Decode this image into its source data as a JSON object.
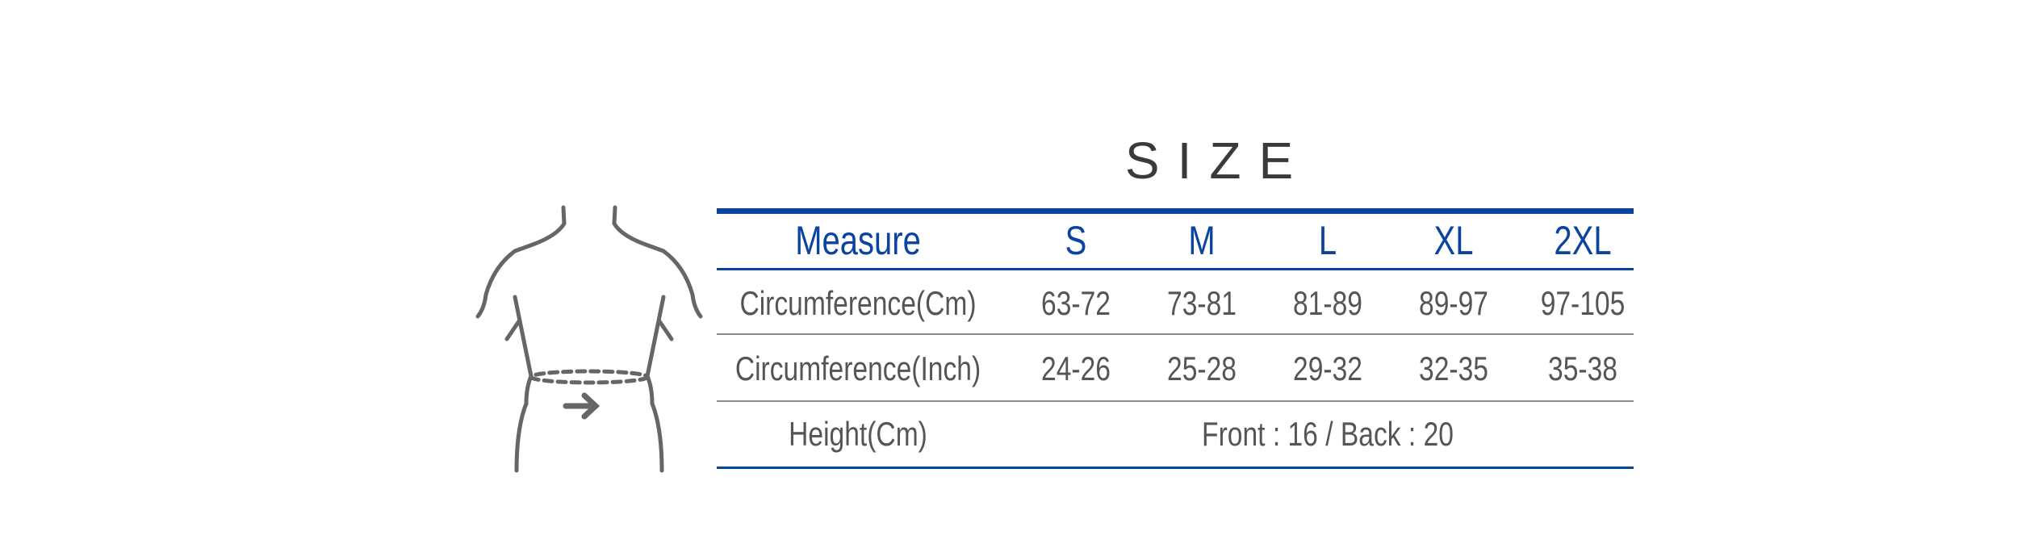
{
  "title": "SIZE",
  "colors": {
    "accent": "#0b43a0",
    "text": "#555555",
    "rule": "#888888",
    "figure": "#666666"
  },
  "figure": {
    "icon": "waist-measurement-icon"
  },
  "table": {
    "headers": [
      "Measure",
      "S",
      "M",
      "L",
      "XL",
      "2XL"
    ],
    "rows": [
      {
        "label": "Circumference(Cm)",
        "values": [
          "63-72",
          "73-81",
          "81-89",
          "89-97",
          "97-105"
        ]
      },
      {
        "label": "Circumference(Inch)",
        "values": [
          "24-26",
          "25-28",
          "29-32",
          "32-35",
          "35-38"
        ]
      },
      {
        "label": "Height(Cm)",
        "value": "Front : 16 / Back : 20"
      }
    ]
  }
}
